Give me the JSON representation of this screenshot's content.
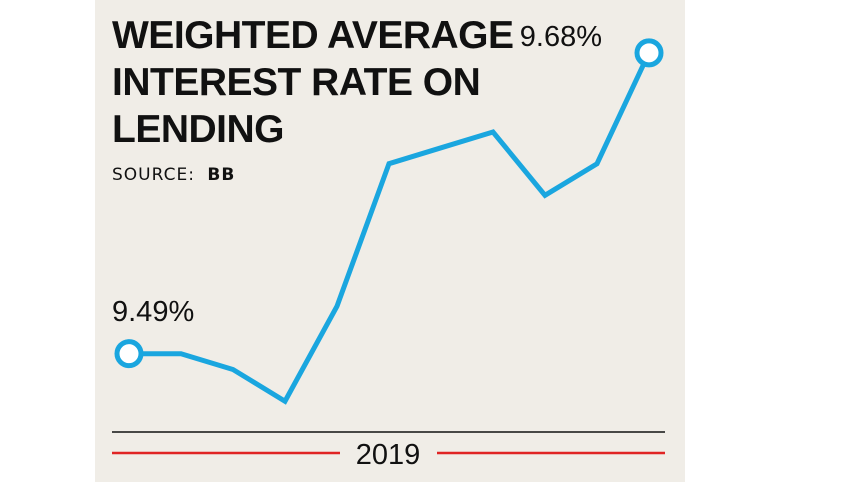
{
  "chart_data": {
    "type": "line",
    "title_lines": [
      "WEIGHTED AVERAGE",
      "INTEREST RATE ON",
      "LENDING"
    ],
    "source_prefix": "SOURCE:",
    "source_value": "BB",
    "x_label": "2019",
    "series": [
      {
        "values": [
          9.49,
          9.49,
          9.48,
          9.46,
          9.52,
          9.61,
          9.62,
          9.63,
          9.59,
          9.61,
          9.68
        ]
      }
    ],
    "start_label": "9.49%",
    "end_label": "9.68%",
    "ylim": [
      9.45,
      9.69
    ],
    "grid": false,
    "colors": {
      "line": "#1aa6df",
      "marker_fill": "#ffffff",
      "rule_top": "#111111",
      "rule_bottom": "#e02424",
      "background": "#f0ede7"
    }
  }
}
